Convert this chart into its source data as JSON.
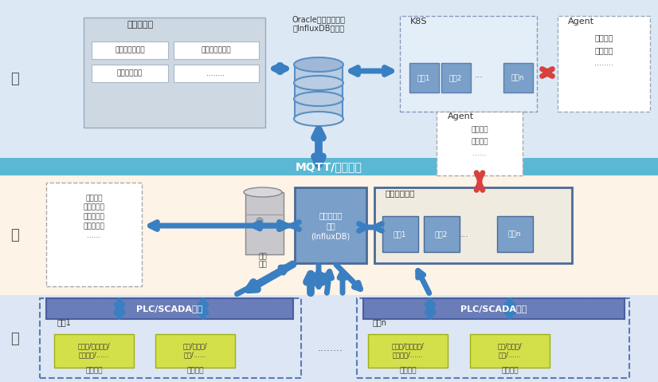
{
  "cloud_bg": "#dce9f5",
  "edge_bg": "#fdf3e7",
  "endpoint_bg": "#dce6f5",
  "mqtt_bg": "#5ab8d4",
  "cloud_label": "云",
  "edge_label": "边",
  "endpoint_label": "端",
  "mqtt_label": "MQTT/文件服务",
  "viz_title": "数据可视化",
  "viz_btn1": "采集数据可视化",
  "viz_btn2": "历史数据可视化",
  "viz_btn3": "历史数据分析",
  "viz_btn4": "........",
  "oracle_label": "Oracle关系型数据库\n或InfluxDB数据库",
  "k8s_label": "K8S",
  "k8s_c1": "容器1",
  "k8s_c2": "容器2",
  "k8s_dots": "...",
  "k8s_cn": "容器n",
  "agent_c1": "Agent",
  "agent_c2": "容器监控",
  "agent_c3": "容器启停",
  "agent_c4": "........",
  "edge_data": "采集数据\n投药预测表\n训练样本表\n历史数据表\n......",
  "disk_label": "本地\n磁盘",
  "ts_label": "时序数据库\n容器\n(InfluxDB)",
  "edge_svc": "边缘容器服务",
  "e_c1": "容器1",
  "e_c2": "容器2",
  "e_dots": "...",
  "e_cn": "容器n",
  "agent_e1": "Agent",
  "agent_e2": "容器监控",
  "agent_e3": "容器启停",
  "agent_e4": "......",
  "plc1": "PLC/SCADA系统",
  "plc2": "PLC/SCADA系统",
  "fac1": "水厂1",
  "facn": "水厂n",
  "sensor": "传感器/自控设备/\n仪器仪表/......",
  "pump": "泵组/变频器/\n阀门/......",
  "dcollect": "数据采集",
  "ctrl": "控制设备",
  "mid_dots": "........",
  "arrow_blue": "#3a7fc1",
  "arrow_red": "#d94040",
  "container_col": "#7a9fc8",
  "plc_col": "#6b7db8",
  "yg_col": "#d4e04a",
  "viz_box": "#d0d8e4"
}
